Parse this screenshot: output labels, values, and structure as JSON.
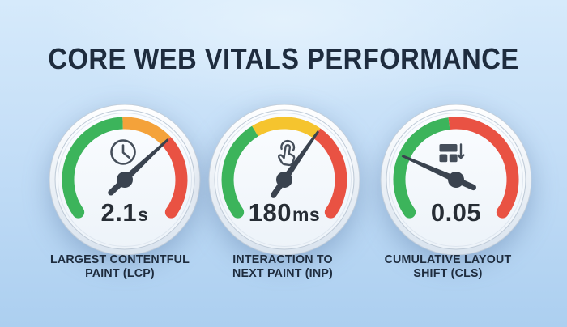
{
  "title": "CORE WEB VITALS PERFORMANCE",
  "colors": {
    "background_top": "#D6EAFB",
    "background_bottom": "#ACCFF0",
    "green": "#3CB45B",
    "orange": "#F4A23A",
    "yellow": "#F5C42E",
    "red": "#E95243",
    "needle": "#3A434F",
    "icon": "#454E5A",
    "value_text": "#272D35",
    "heading_text": "#1E2C3E"
  },
  "chart_data": {
    "type": "gauge",
    "title": "CORE WEB VITALS PERFORMANCE",
    "arc_span_deg": [
      -125,
      125
    ],
    "legend_position": "none",
    "gauges": [
      {
        "metric": "Largest Contentful Paint",
        "abbr": "LCP",
        "icon": "clock-icon",
        "value": "2.1",
        "unit": "s",
        "display": "2.1s",
        "label_line1": "LARGEST CONTENTFUL",
        "label_line2": "PAINT (LCP)",
        "needle_angle_deg": 47,
        "zones": [
          {
            "color": "green",
            "from_deg": -125,
            "to_deg": -2
          },
          {
            "color": "orange",
            "from_deg": -2,
            "to_deg": 47
          },
          {
            "color": "red",
            "from_deg": 47,
            "to_deg": 125
          }
        ]
      },
      {
        "metric": "Interaction to Next Paint",
        "abbr": "INP",
        "icon": "tap-icon",
        "value": "180",
        "unit": "ms",
        "display": "180ms",
        "label_line1": "INTERACTION TO",
        "label_line2": "NEXT PAINT (INP)",
        "needle_angle_deg": 35,
        "zones": [
          {
            "color": "green",
            "from_deg": -125,
            "to_deg": -31
          },
          {
            "color": "yellow",
            "from_deg": -31,
            "to_deg": 35
          },
          {
            "color": "red",
            "from_deg": 35,
            "to_deg": 125
          }
        ]
      },
      {
        "metric": "Cumulative Layout Shift",
        "abbr": "CLS",
        "icon": "layout-shift-icon",
        "value": "0.05",
        "unit": "",
        "display": "0.05",
        "label_line1": "CUMULATIVE LAYOUT",
        "label_line2": "SHIFT (CLS)",
        "needle_angle_deg": -66,
        "zones": [
          {
            "color": "green",
            "from_deg": -125,
            "to_deg": -7
          },
          {
            "color": "red",
            "from_deg": -7,
            "to_deg": 125
          }
        ]
      }
    ]
  }
}
